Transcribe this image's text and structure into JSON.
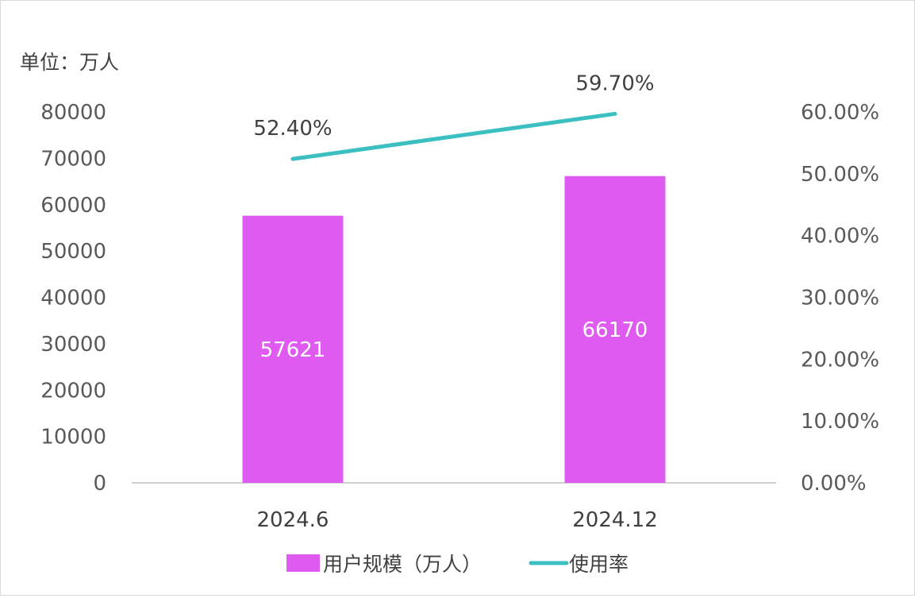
{
  "chart_data": {
    "type": "bar",
    "unit_label": "单位：万人",
    "categories": [
      "2024.6",
      "2024.12"
    ],
    "series": [
      {
        "name": "用户规模（万人）",
        "type": "bar",
        "axis": "left",
        "color": "#DF5AF0",
        "values": [
          57621,
          66170
        ],
        "data_labels": [
          "57621",
          "66170"
        ]
      },
      {
        "name": "使用率",
        "type": "line",
        "axis": "right",
        "color": "#3CBFC0",
        "values": [
          52.4,
          59.7
        ],
        "data_labels": [
          "52.40%",
          "59.70%"
        ]
      }
    ],
    "y_left": {
      "range": [
        0,
        80000
      ],
      "ticks": [
        "0",
        "10000",
        "20000",
        "30000",
        "40000",
        "50000",
        "60000",
        "70000",
        "80000"
      ]
    },
    "y_right": {
      "range": [
        0,
        60
      ],
      "ticks": [
        "0.00%",
        "10.00%",
        "20.00%",
        "30.00%",
        "40.00%",
        "50.00%",
        "60.00%"
      ]
    },
    "grid": false,
    "legend_position": "bottom"
  }
}
